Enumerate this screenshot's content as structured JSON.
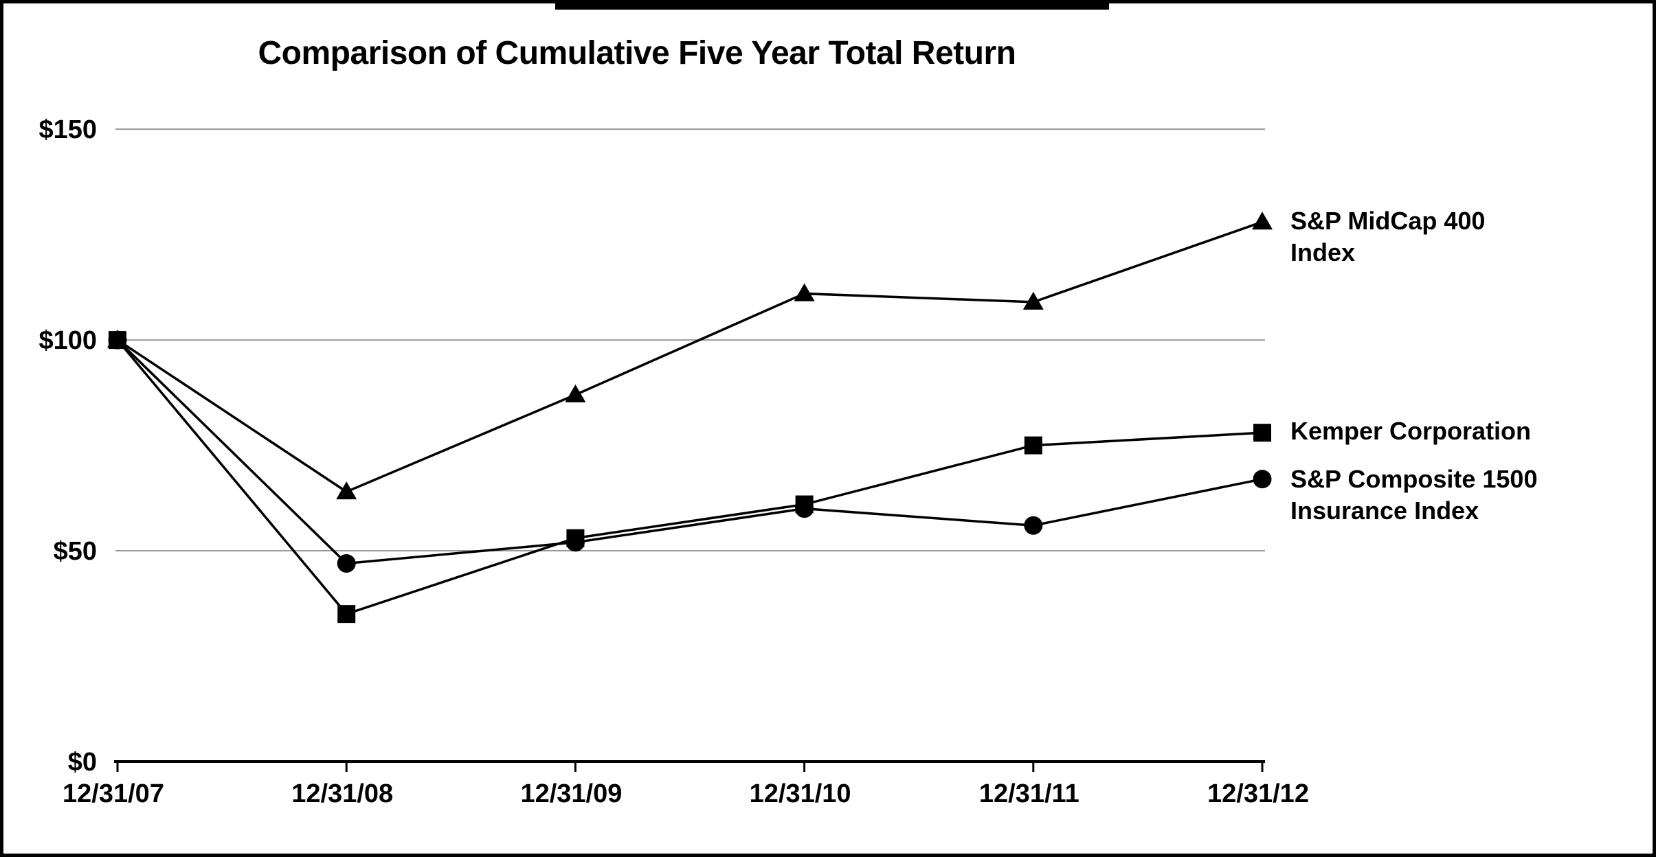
{
  "page": {
    "background": "#ffffff",
    "border_color": "#000000"
  },
  "chart_data": {
    "type": "line",
    "title": "Comparison of Cumulative Five Year Total Return",
    "xlabel": "",
    "ylabel": "",
    "ylim": [
      0,
      150
    ],
    "grid": "horizontal-only",
    "gridline_color": "#999999",
    "axis_color": "#000000",
    "series_color": "#000000",
    "legend_position": "right-of-last-point",
    "categories": [
      "12/31/07",
      "12/31/08",
      "12/31/09",
      "12/31/10",
      "12/31/11",
      "12/31/12"
    ],
    "y_ticks": [
      {
        "label": "$150",
        "value": 150
      },
      {
        "label": "$100",
        "value": 100
      },
      {
        "label": "$50",
        "value": 50
      },
      {
        "label": "$0",
        "value": 0
      }
    ],
    "series": [
      {
        "name": "S&P MidCap 400 Index",
        "label_lines": [
          "S&P MidCap 400",
          "Index"
        ],
        "marker": "triangle",
        "values": [
          100,
          64,
          87,
          111,
          109,
          128
        ]
      },
      {
        "name": "S&P Composite 1500 Insurance Index",
        "label_lines": [
          "S&P Composite 1500",
          "Insurance Index"
        ],
        "marker": "circle",
        "values": [
          100,
          47,
          52,
          60,
          56,
          67
        ]
      },
      {
        "name": "Kemper Corporation",
        "label_lines": [
          "Kemper Corporation"
        ],
        "marker": "square",
        "values": [
          100,
          35,
          53,
          61,
          75,
          78
        ]
      }
    ]
  }
}
